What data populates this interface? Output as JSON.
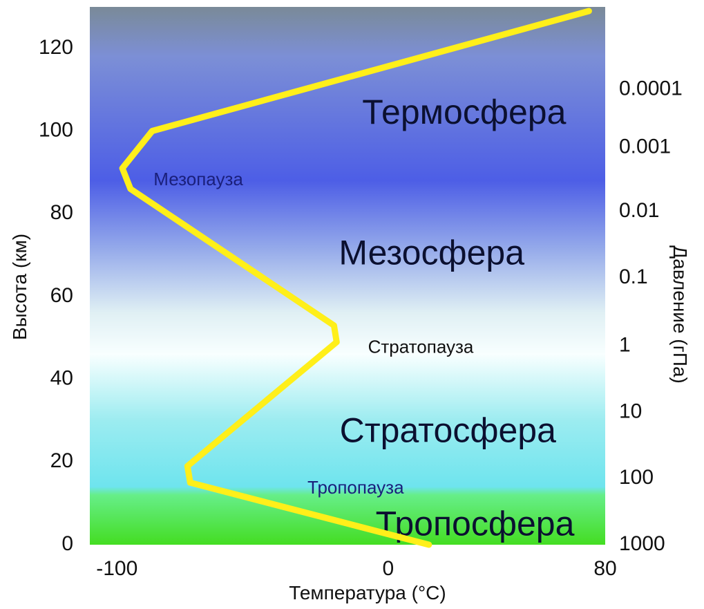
{
  "chart_data": {
    "type": "line",
    "title": "",
    "xlabel": "Температура (°C)",
    "ylabel": "Высота (км)",
    "y2label": "Давление (гПа)",
    "xlim": [
      -110,
      80
    ],
    "ylim": [
      0,
      130
    ],
    "x_ticks": [
      {
        "value": -100,
        "label": "-100"
      },
      {
        "value": 0,
        "label": "0"
      },
      {
        "value": 80,
        "label": "80"
      }
    ],
    "y_ticks": [
      {
        "value": 0,
        "label": "0"
      },
      {
        "value": 20,
        "label": "20"
      },
      {
        "value": 40,
        "label": "40"
      },
      {
        "value": 60,
        "label": "60"
      },
      {
        "value": 80,
        "label": "80"
      },
      {
        "value": 100,
        "label": "100"
      },
      {
        "value": 120,
        "label": "120"
      }
    ],
    "y2_ticks": [
      {
        "altitude": 0,
        "label": "1000"
      },
      {
        "altitude": 16,
        "label": "100"
      },
      {
        "altitude": 32,
        "label": "10"
      },
      {
        "altitude": 48,
        "label": "1"
      },
      {
        "altitude": 64.5,
        "label": "0.1"
      },
      {
        "altitude": 80.5,
        "label": "0.01"
      },
      {
        "altitude": 96,
        "label": "0.001"
      },
      {
        "altitude": 110,
        "label": "0.0001"
      }
    ],
    "series": [
      {
        "name": "Температура",
        "color": "#ffef1a",
        "points": [
          {
            "x": 15,
            "y": 0
          },
          {
            "x": -73,
            "y": 15
          },
          {
            "x": -74,
            "y": 19
          },
          {
            "x": -19,
            "y": 49
          },
          {
            "x": -20,
            "y": 53
          },
          {
            "x": -95,
            "y": 86
          },
          {
            "x": -98,
            "y": 91
          },
          {
            "x": -87,
            "y": 100
          },
          {
            "x": 74,
            "y": 129
          }
        ]
      }
    ],
    "layers": [
      {
        "label": "Термосфера",
        "x": 28,
        "y": 104,
        "size": "big",
        "color": "#0b1030"
      },
      {
        "label": "Мезопауза",
        "x": -70,
        "y": 88,
        "size": "small",
        "color": "#1a1f7a"
      },
      {
        "label": "Мезосфера",
        "x": 16,
        "y": 70,
        "size": "big",
        "color": "#0b1030"
      },
      {
        "label": "Стратопауза",
        "x": 12,
        "y": 47.5,
        "size": "small",
        "color": "#111111"
      },
      {
        "label": "Стратосфера",
        "x": 22,
        "y": 27,
        "size": "big",
        "color": "#0b1030"
      },
      {
        "label": "Тропопауза",
        "x": -12,
        "y": 13.5,
        "size": "small",
        "color": "#1a1f7a"
      },
      {
        "label": "Тропосфера",
        "x": 32,
        "y": 4.5,
        "size": "big",
        "color": "#0b1030"
      }
    ],
    "background_gradient": [
      {
        "altitude": 130,
        "color": "#7a8a98"
      },
      {
        "altitude": 118,
        "color": "#7c8fd6"
      },
      {
        "altitude": 88,
        "color": "#4d5ee6"
      },
      {
        "altitude": 72,
        "color": "#93a8ea"
      },
      {
        "altitude": 56,
        "color": "#e0f0f4"
      },
      {
        "altitude": 46,
        "color": "#f8ffff"
      },
      {
        "altitude": 30,
        "color": "#9cecf0"
      },
      {
        "altitude": 14,
        "color": "#6ee4ee"
      },
      {
        "altitude": 12,
        "color": "#66ee88"
      },
      {
        "altitude": 0,
        "color": "#44dd22"
      }
    ]
  }
}
